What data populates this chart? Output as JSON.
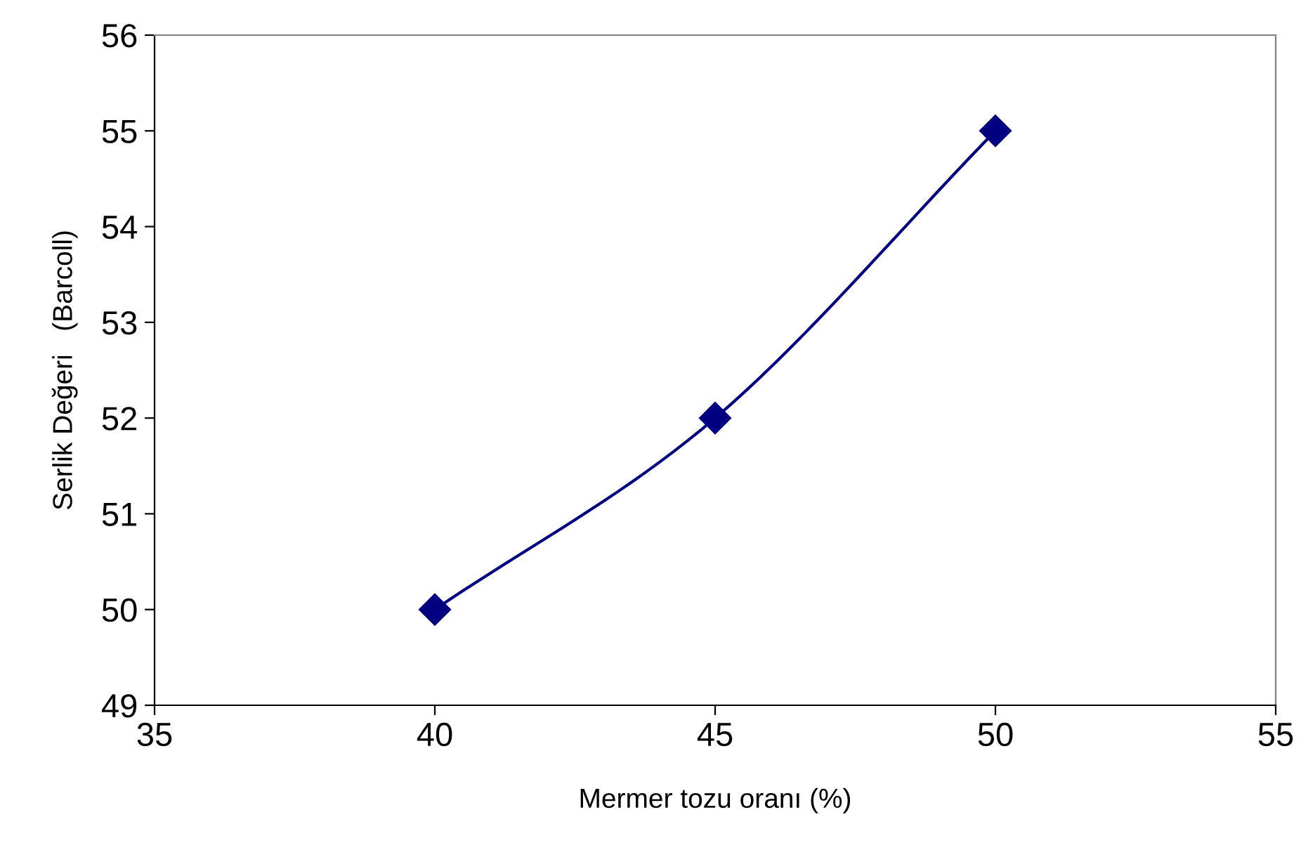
{
  "chart_data": {
    "type": "line",
    "xlabel": "Mermer tozu oranı (%)",
    "ylabel": "Serlik Değeri   (Barcoll)",
    "x": [
      40,
      45,
      50
    ],
    "series": [
      {
        "color": "#000080",
        "values": [
          50,
          52,
          55
        ]
      }
    ],
    "marker": "diamond",
    "line_style": "solid",
    "grid": false,
    "xlim": [
      35,
      55
    ],
    "xticks": [
      35,
      40,
      45,
      50,
      55
    ],
    "ylim": [
      49,
      56
    ],
    "yticks": [
      49,
      50,
      51,
      52,
      53,
      54,
      55,
      56
    ]
  }
}
